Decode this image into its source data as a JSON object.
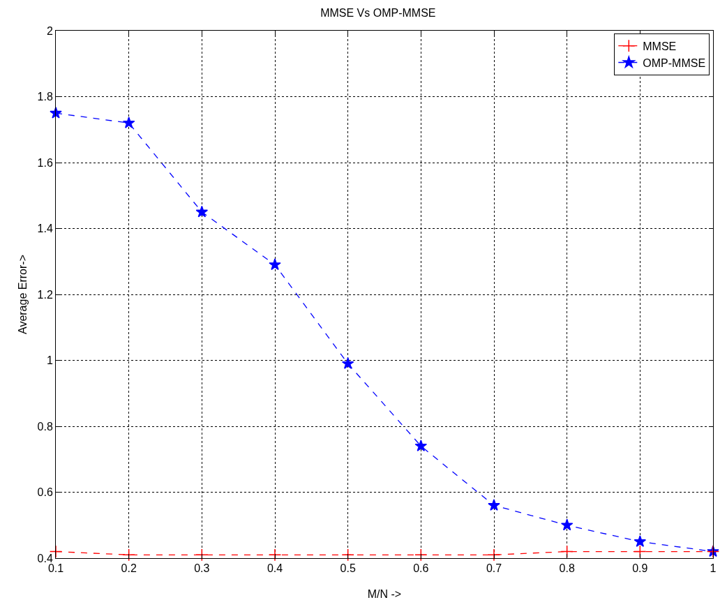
{
  "chart_data": {
    "type": "line",
    "title": "MMSE Vs OMP-MMSE",
    "xlabel": "M/N ->",
    "ylabel": "Average Error->",
    "x": [
      0.1,
      0.2,
      0.3,
      0.4,
      0.5,
      0.6,
      0.7,
      0.8,
      0.9,
      1.0
    ],
    "series": [
      {
        "name": "MMSE",
        "color": "#ff0000",
        "marker": "cross",
        "values": [
          0.42,
          0.41,
          0.41,
          0.41,
          0.41,
          0.41,
          0.41,
          0.42,
          0.42,
          0.42
        ]
      },
      {
        "name": "OMP-MMSE",
        "color": "#0000ff",
        "marker": "star",
        "values": [
          1.75,
          1.72,
          1.45,
          1.29,
          0.99,
          0.74,
          0.56,
          0.5,
          0.45,
          0.42
        ]
      }
    ],
    "xlim": [
      0.1,
      1
    ],
    "xticks": [
      0.1,
      0.2,
      0.3,
      0.4,
      0.5,
      0.6,
      0.7,
      0.8,
      0.9,
      1
    ],
    "ylim": [
      0.4,
      2
    ],
    "yticks": [
      0.4,
      0.6,
      0.8,
      1,
      1.2,
      1.4,
      1.6,
      1.8,
      2
    ],
    "grid": true,
    "legend": "top right",
    "line_style": "dashed"
  }
}
